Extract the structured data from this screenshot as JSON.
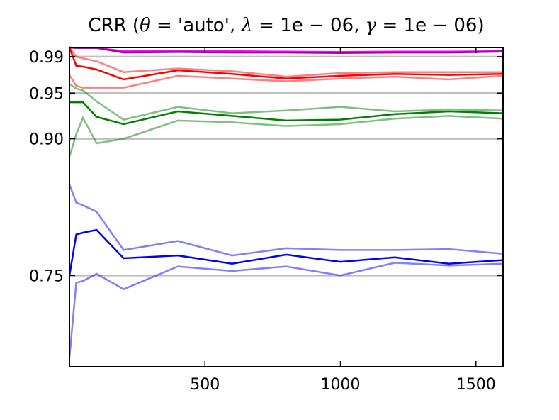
{
  "chart_data": {
    "type": "line",
    "title": {
      "prefix": "CRR (",
      "theta": "θ",
      "theta_val": " = 'auto', ",
      "lambda": "λ",
      "lambda_val": " = 1e − 06, ",
      "gamma": "γ",
      "gamma_val": " = 1e − 06)"
    },
    "xlabel": "",
    "ylabel": "",
    "xlim": [
      0,
      1600
    ],
    "ylim": [
      0.65,
      1.0
    ],
    "x_ticks": [
      500,
      1000,
      1500
    ],
    "y_ticks": [
      0.75,
      0.9,
      0.95,
      0.99
    ],
    "y_tick_labels": [
      "0.75",
      "0.90",
      "0.95",
      "0.99"
    ],
    "reference_lines": [
      0.75,
      0.9,
      0.95,
      0.99
    ],
    "x": [
      0,
      25,
      50,
      100,
      200,
      400,
      600,
      800,
      1000,
      1200,
      1400,
      1600
    ],
    "series": [
      {
        "color": "#ff00ff",
        "opacity": 1.0,
        "values": [
          1.0,
          0.9995,
          0.9995,
          0.9995,
          0.996,
          0.9965,
          0.996,
          0.9955,
          0.995,
          0.9955,
          0.9955,
          0.996
        ]
      },
      {
        "color": "#aa00aa",
        "opacity": 1.0,
        "values": [
          1.0,
          0.9995,
          0.9995,
          0.9995,
          0.9945,
          0.995,
          0.9945,
          0.9945,
          0.994,
          0.9945,
          0.9945,
          0.9955
        ]
      },
      {
        "color": "#ff0000",
        "opacity": 0.5,
        "values": [
          1.0,
          0.99,
          0.988,
          0.985,
          0.973,
          0.977,
          0.974,
          0.968,
          0.972,
          0.973,
          0.973,
          0.973
        ]
      },
      {
        "color": "#ff0000",
        "opacity": 1.0,
        "values": [
          1.0,
          0.98,
          0.979,
          0.976,
          0.965,
          0.975,
          0.971,
          0.966,
          0.969,
          0.971,
          0.97,
          0.971
        ]
      },
      {
        "color": "#ff0000",
        "opacity": 0.5,
        "values": [
          0.97,
          0.958,
          0.956,
          0.956,
          0.956,
          0.969,
          0.966,
          0.963,
          0.966,
          0.968,
          0.965,
          0.969
        ]
      },
      {
        "color": "#008000",
        "opacity": 0.5,
        "values": [
          0.96,
          0.955,
          0.953,
          0.941,
          0.921,
          0.935,
          0.928,
          0.931,
          0.935,
          0.93,
          0.932,
          0.931
        ]
      },
      {
        "color": "#008000",
        "opacity": 1.0,
        "values": [
          0.94,
          0.94,
          0.94,
          0.924,
          0.916,
          0.93,
          0.925,
          0.92,
          0.921,
          0.927,
          0.93,
          0.928
        ]
      },
      {
        "color": "#008000",
        "opacity": 0.5,
        "values": [
          0.88,
          0.905,
          0.923,
          0.895,
          0.9,
          0.92,
          0.918,
          0.914,
          0.916,
          0.922,
          0.925,
          0.922
        ]
      },
      {
        "color": "#0000ff",
        "opacity": 0.5,
        "values": [
          0.85,
          0.83,
          0.827,
          0.82,
          0.778,
          0.788,
          0.772,
          0.78,
          0.778,
          0.778,
          0.779,
          0.774
        ]
      },
      {
        "color": "#0000ff",
        "opacity": 1.0,
        "values": [
          0.75,
          0.795,
          0.797,
          0.8,
          0.769,
          0.772,
          0.763,
          0.773,
          0.765,
          0.77,
          0.763,
          0.767
        ]
      },
      {
        "color": "#0000ff",
        "opacity": 0.5,
        "values": [
          0.66,
          0.742,
          0.744,
          0.752,
          0.735,
          0.76,
          0.755,
          0.76,
          0.75,
          0.764,
          0.761,
          0.763
        ]
      }
    ],
    "grid": false,
    "legend": "none"
  }
}
